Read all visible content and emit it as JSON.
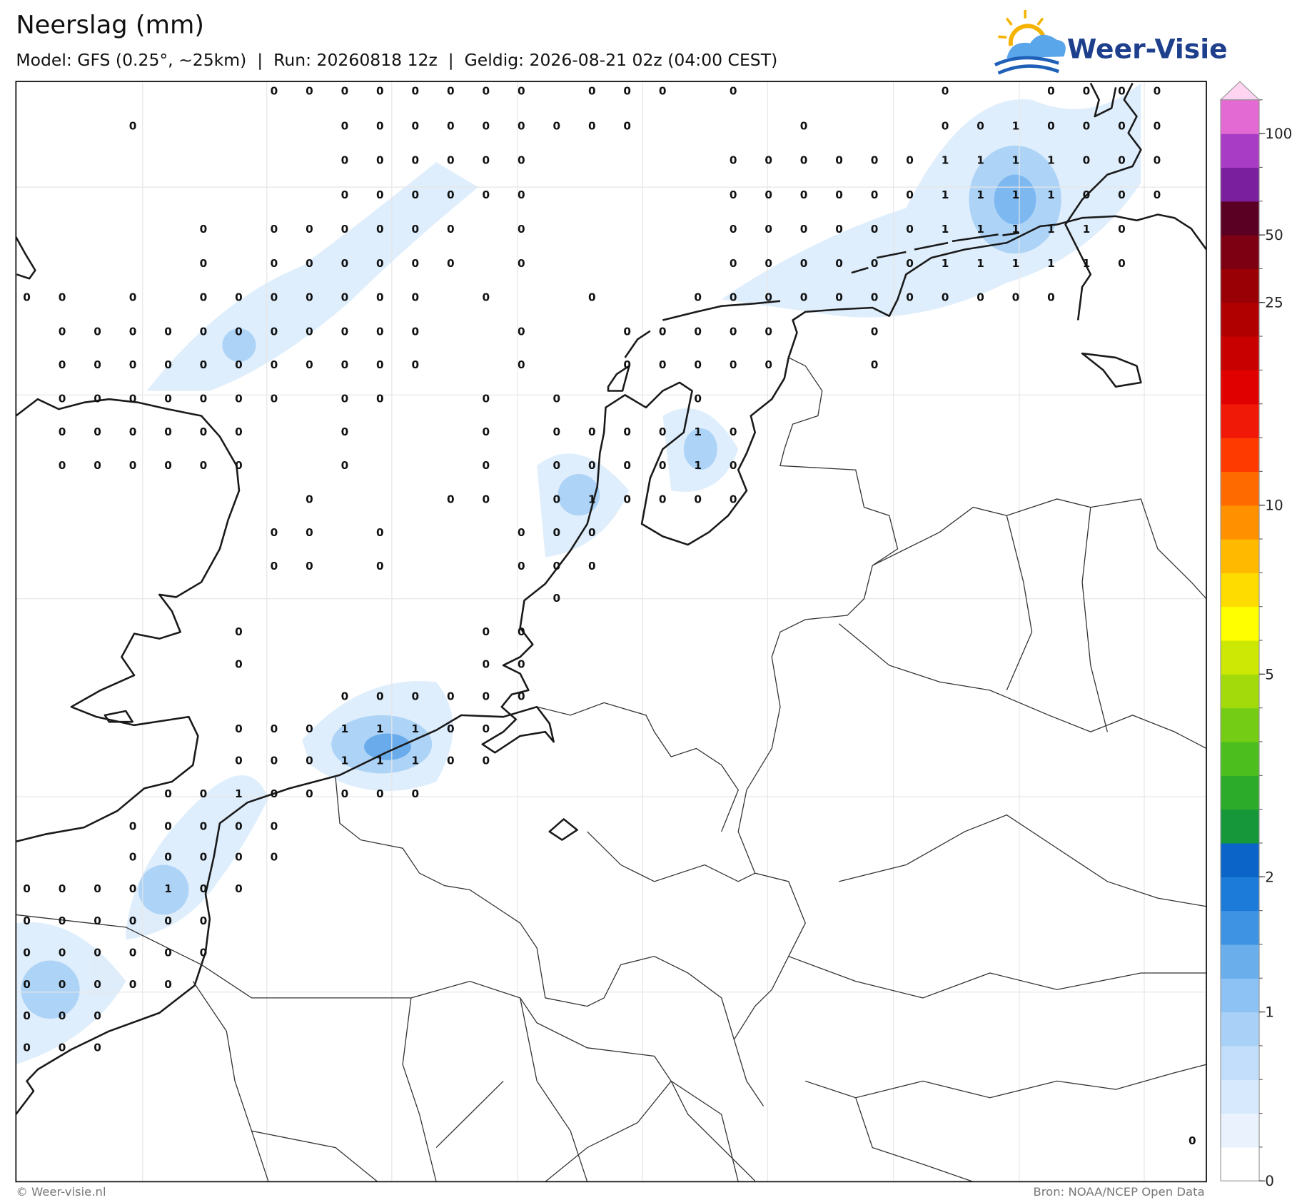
{
  "header": {
    "title": "Neerslag (mm)",
    "subtitle": "Model: GFS (0.25°, ~25km)  |  Run: 20260818 12z  |  Geldig: 2026-08-21 02z (04:00 CEST)",
    "logo": "Weer-Visie"
  },
  "map": {
    "values": [
      [
        null,
        null,
        null,
        null,
        null,
        null,
        null,
        0,
        0,
        0,
        0,
        0,
        0,
        0,
        0,
        null,
        0,
        0,
        0,
        null,
        0,
        null,
        null,
        null,
        null,
        null,
        0,
        null,
        null,
        0,
        0,
        0,
        0,
        null
      ],
      [
        null,
        null,
        null,
        0,
        null,
        null,
        null,
        null,
        null,
        0,
        0,
        0,
        0,
        0,
        0,
        0,
        0,
        0,
        null,
        null,
        null,
        null,
        0,
        null,
        null,
        null,
        0,
        0,
        1,
        0,
        0,
        0,
        0,
        null
      ],
      [
        null,
        null,
        null,
        null,
        null,
        null,
        null,
        null,
        null,
        0,
        0,
        0,
        0,
        0,
        0,
        null,
        null,
        null,
        null,
        null,
        0,
        0,
        0,
        0,
        0,
        0,
        1,
        1,
        1,
        1,
        0,
        0,
        0,
        null
      ],
      [
        null,
        null,
        null,
        null,
        null,
        null,
        null,
        null,
        null,
        0,
        0,
        0,
        0,
        0,
        0,
        null,
        null,
        null,
        null,
        null,
        0,
        0,
        0,
        0,
        0,
        0,
        1,
        1,
        1,
        1,
        0,
        0,
        0,
        null
      ],
      [
        null,
        null,
        null,
        null,
        null,
        0,
        null,
        0,
        0,
        0,
        0,
        0,
        0,
        null,
        0,
        null,
        null,
        null,
        null,
        null,
        0,
        0,
        0,
        0,
        0,
        0,
        1,
        1,
        1,
        1,
        1,
        0,
        null,
        null
      ],
      [
        null,
        null,
        null,
        null,
        null,
        0,
        null,
        0,
        0,
        0,
        0,
        0,
        0,
        null,
        0,
        null,
        null,
        null,
        null,
        null,
        0,
        0,
        0,
        0,
        0,
        0,
        1,
        1,
        1,
        1,
        1,
        0,
        null,
        null
      ],
      [
        0,
        0,
        null,
        0,
        null,
        0,
        0,
        0,
        0,
        0,
        0,
        0,
        null,
        0,
        null,
        null,
        0,
        null,
        null,
        0,
        0,
        0,
        0,
        0,
        0,
        0,
        0,
        0,
        0,
        0,
        null,
        null,
        null,
        null
      ],
      [
        null,
        0,
        0,
        0,
        0,
        0,
        0,
        0,
        0,
        0,
        0,
        0,
        null,
        null,
        0,
        null,
        null,
        0,
        0,
        0,
        0,
        0,
        null,
        null,
        0,
        null,
        null,
        null,
        null,
        null,
        null,
        null,
        null,
        null
      ],
      [
        null,
        0,
        0,
        0,
        0,
        0,
        0,
        0,
        0,
        0,
        0,
        0,
        null,
        null,
        0,
        null,
        null,
        0,
        0,
        0,
        0,
        0,
        null,
        null,
        0,
        null,
        null,
        null,
        null,
        null,
        null,
        null,
        null,
        null
      ],
      [
        null,
        0,
        0,
        0,
        0,
        0,
        0,
        0,
        null,
        0,
        0,
        null,
        null,
        0,
        null,
        0,
        null,
        null,
        null,
        0,
        null,
        null,
        null,
        null,
        null,
        null,
        null,
        null,
        null,
        null,
        null,
        null,
        null,
        null
      ],
      [
        null,
        0,
        0,
        0,
        0,
        0,
        0,
        null,
        null,
        0,
        null,
        null,
        null,
        0,
        null,
        0,
        0,
        0,
        0,
        1,
        0,
        null,
        null,
        null,
        null,
        null,
        null,
        null,
        null,
        null,
        null,
        null,
        null,
        null
      ],
      [
        null,
        0,
        0,
        0,
        0,
        0,
        0,
        null,
        null,
        0,
        null,
        null,
        null,
        0,
        null,
        0,
        0,
        0,
        0,
        1,
        0,
        null,
        null,
        null,
        null,
        null,
        null,
        null,
        null,
        null,
        null,
        null,
        null,
        null
      ],
      [
        null,
        null,
        null,
        null,
        null,
        null,
        null,
        null,
        0,
        null,
        null,
        null,
        0,
        0,
        null,
        0,
        1,
        0,
        0,
        0,
        0,
        null,
        null,
        null,
        null,
        null,
        null,
        null,
        null,
        null,
        null,
        null,
        null,
        null
      ],
      [
        null,
        null,
        null,
        null,
        null,
        null,
        null,
        0,
        0,
        null,
        0,
        null,
        null,
        null,
        0,
        0,
        0,
        null,
        null,
        null,
        null,
        null,
        null,
        null,
        null,
        null,
        null,
        null,
        null,
        null,
        null,
        null,
        null,
        null
      ],
      [
        null,
        null,
        null,
        null,
        null,
        null,
        null,
        0,
        0,
        null,
        0,
        null,
        null,
        null,
        0,
        0,
        0,
        null,
        null,
        null,
        null,
        null,
        null,
        null,
        null,
        null,
        null,
        null,
        null,
        null,
        null,
        null,
        null,
        null
      ],
      [
        null,
        null,
        null,
        null,
        null,
        null,
        null,
        null,
        null,
        null,
        null,
        null,
        null,
        null,
        null,
        0,
        null,
        null,
        null,
        null,
        null,
        null,
        null,
        null,
        null,
        null,
        null,
        null,
        null,
        null,
        null,
        null,
        null,
        null
      ],
      [
        null,
        null,
        null,
        null,
        null,
        null,
        0,
        null,
        null,
        null,
        null,
        null,
        null,
        0,
        0,
        null,
        null,
        null,
        null,
        null,
        null,
        null,
        null,
        null,
        null,
        null,
        null,
        null,
        null,
        null,
        null,
        null,
        null,
        null
      ],
      [
        null,
        null,
        null,
        null,
        null,
        null,
        0,
        null,
        null,
        null,
        null,
        null,
        null,
        0,
        0,
        null,
        null,
        null,
        null,
        null,
        null,
        null,
        null,
        null,
        null,
        null,
        null,
        null,
        null,
        null,
        null,
        null,
        null,
        null
      ],
      [
        null,
        null,
        null,
        null,
        null,
        null,
        null,
        null,
        null,
        0,
        0,
        0,
        0,
        0,
        0,
        null,
        null,
        null,
        null,
        null,
        null,
        null,
        null,
        null,
        null,
        null,
        null,
        null,
        null,
        null,
        null,
        null,
        null,
        null
      ],
      [
        null,
        null,
        null,
        null,
        null,
        null,
        0,
        0,
        0,
        1,
        1,
        1,
        0,
        0,
        null,
        null,
        null,
        null,
        null,
        null,
        null,
        null,
        null,
        null,
        null,
        null,
        null,
        null,
        null,
        null,
        null,
        null,
        null,
        null
      ],
      [
        null,
        null,
        null,
        null,
        null,
        null,
        0,
        0,
        0,
        1,
        1,
        1,
        0,
        0,
        null,
        null,
        null,
        null,
        null,
        null,
        null,
        null,
        null,
        null,
        null,
        null,
        null,
        null,
        null,
        null,
        null,
        null,
        null,
        null
      ],
      [
        null,
        null,
        null,
        null,
        0,
        0,
        1,
        0,
        0,
        0,
        0,
        0,
        null,
        null,
        null,
        null,
        null,
        null,
        null,
        null,
        null,
        null,
        null,
        null,
        null,
        null,
        null,
        null,
        null,
        null,
        null,
        null,
        null,
        null
      ],
      [
        null,
        null,
        null,
        0,
        0,
        0,
        0,
        0,
        null,
        null,
        null,
        null,
        null,
        null,
        null,
        null,
        null,
        null,
        null,
        null,
        null,
        null,
        null,
        null,
        null,
        null,
        null,
        null,
        null,
        null,
        null,
        null,
        null,
        null
      ],
      [
        null,
        null,
        null,
        0,
        0,
        0,
        0,
        0,
        null,
        null,
        null,
        null,
        null,
        null,
        null,
        null,
        null,
        null,
        null,
        null,
        null,
        null,
        null,
        null,
        null,
        null,
        null,
        null,
        null,
        null,
        null,
        null,
        null,
        null
      ],
      [
        0,
        0,
        0,
        0,
        1,
        0,
        0,
        null,
        null,
        null,
        null,
        null,
        null,
        null,
        null,
        null,
        null,
        null,
        null,
        null,
        null,
        null,
        null,
        null,
        null,
        null,
        null,
        null,
        null,
        null,
        null,
        null,
        null,
        null
      ],
      [
        0,
        0,
        0,
        0,
        0,
        0,
        null,
        null,
        null,
        null,
        null,
        null,
        null,
        null,
        null,
        null,
        null,
        null,
        null,
        null,
        null,
        null,
        null,
        null,
        null,
        null,
        null,
        null,
        null,
        null,
        null,
        null,
        null,
        null
      ],
      [
        0,
        0,
        0,
        0,
        0,
        0,
        null,
        null,
        null,
        null,
        null,
        null,
        null,
        null,
        null,
        null,
        null,
        null,
        null,
        null,
        null,
        null,
        null,
        null,
        null,
        null,
        null,
        null,
        null,
        null,
        null,
        null,
        null,
        null
      ],
      [
        0,
        0,
        0,
        0,
        0,
        null,
        null,
        null,
        null,
        null,
        null,
        null,
        null,
        null,
        null,
        null,
        null,
        null,
        null,
        null,
        null,
        null,
        null,
        null,
        null,
        null,
        null,
        null,
        null,
        null,
        null,
        null,
        null,
        null
      ],
      [
        0,
        0,
        0,
        null,
        null,
        null,
        null,
        null,
        null,
        null,
        null,
        null,
        null,
        null,
        null,
        null,
        null,
        null,
        null,
        null,
        null,
        null,
        null,
        null,
        null,
        null,
        null,
        null,
        null,
        null,
        null,
        null,
        null,
        null
      ],
      [
        0,
        0,
        0,
        null,
        null,
        null,
        null,
        null,
        null,
        null,
        null,
        null,
        null,
        null,
        null,
        null,
        null,
        null,
        null,
        null,
        null,
        null,
        null,
        null,
        null,
        null,
        null,
        null,
        null,
        null,
        null,
        null,
        null,
        null
      ],
      [
        null,
        null,
        null,
        null,
        null,
        null,
        null,
        null,
        null,
        null,
        null,
        null,
        null,
        null,
        null,
        null,
        null,
        null,
        null,
        null,
        null,
        null,
        null,
        null,
        null,
        null,
        null,
        null,
        null,
        null,
        null,
        null,
        null,
        0
      ]
    ]
  },
  "colorbar": {
    "ticks": [
      0,
      1,
      2,
      5,
      10,
      25,
      50,
      100
    ],
    "colors": [
      "#ffffff",
      "#eaf3fd",
      "#d7e9fc",
      "#c3defa",
      "#a9d1f8",
      "#8dc2f4",
      "#6aaeec",
      "#3f93e3",
      "#1c7bd9",
      "#0b64c8",
      "#15973a",
      "#2cab2a",
      "#4cbf1f",
      "#74cc14",
      "#a2da0c",
      "#cde805",
      "#ffff00",
      "#ffdc00",
      "#ffba00",
      "#ff9100",
      "#ff6a00",
      "#ff3a00",
      "#f01806",
      "#e10000",
      "#c80000",
      "#b10000",
      "#990005",
      "#7c0012",
      "#5a0022",
      "#7a1f9e",
      "#a93cc4",
      "#e36ad2"
    ]
  },
  "footer": {
    "credit": "© Weer-visie.nl",
    "source": "Bron: NOAA/NCEP Open Data"
  }
}
